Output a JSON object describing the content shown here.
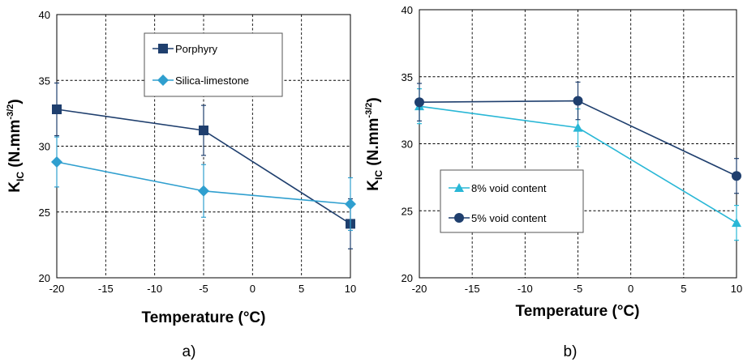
{
  "chart_data": [
    {
      "type": "line",
      "panel_label": "a)",
      "xlabel": "Temperature (°C)",
      "ylabel": {
        "main": "K",
        "sub": "IC",
        "units": " (N.mm",
        "sup": "-3/2",
        "close": ")"
      },
      "xlim": [
        -20,
        10
      ],
      "ylim": [
        20,
        40
      ],
      "xticks": [
        -20,
        -15,
        -10,
        -5,
        0,
        5,
        10
      ],
      "yticks": [
        20,
        25,
        30,
        35,
        40
      ],
      "grid": "dashed",
      "legend_position": "top-center",
      "x": [
        -20,
        -5,
        10
      ],
      "series": [
        {
          "name": "Porphyry",
          "color": "#1f3f6e",
          "marker": "square",
          "values": [
            32.8,
            31.2,
            24.1
          ],
          "error": [
            2.0,
            1.9,
            1.9
          ]
        },
        {
          "name": "Silica-limestone",
          "color": "#2f9fcf",
          "marker": "diamond",
          "values": [
            28.8,
            26.6,
            25.6
          ],
          "error": [
            1.9,
            2.0,
            2.0
          ]
        }
      ]
    },
    {
      "type": "line",
      "panel_label": "b)",
      "xlabel": "Temperature (°C)",
      "ylabel": {
        "main": "K",
        "sub": "IC",
        "units": " (N.mm",
        "sup": "-3/2",
        "close": ")"
      },
      "xlim": [
        -20,
        10
      ],
      "ylim": [
        20,
        40
      ],
      "xticks": [
        -20,
        -15,
        -10,
        -5,
        0,
        5,
        10
      ],
      "yticks": [
        20,
        25,
        30,
        35,
        40
      ],
      "grid": "dashed",
      "legend_position": "bottom-left",
      "x": [
        -20,
        -5,
        10
      ],
      "series": [
        {
          "name": "8% void content",
          "color": "#29b7d6",
          "marker": "triangle",
          "values": [
            32.8,
            31.2,
            24.1
          ],
          "error": [
            1.3,
            1.4,
            1.3
          ]
        },
        {
          "name": "5% void content",
          "color": "#1f3f6e",
          "marker": "circle",
          "values": [
            33.1,
            33.2,
            27.6
          ],
          "error": [
            1.4,
            1.4,
            1.3
          ]
        }
      ]
    }
  ]
}
